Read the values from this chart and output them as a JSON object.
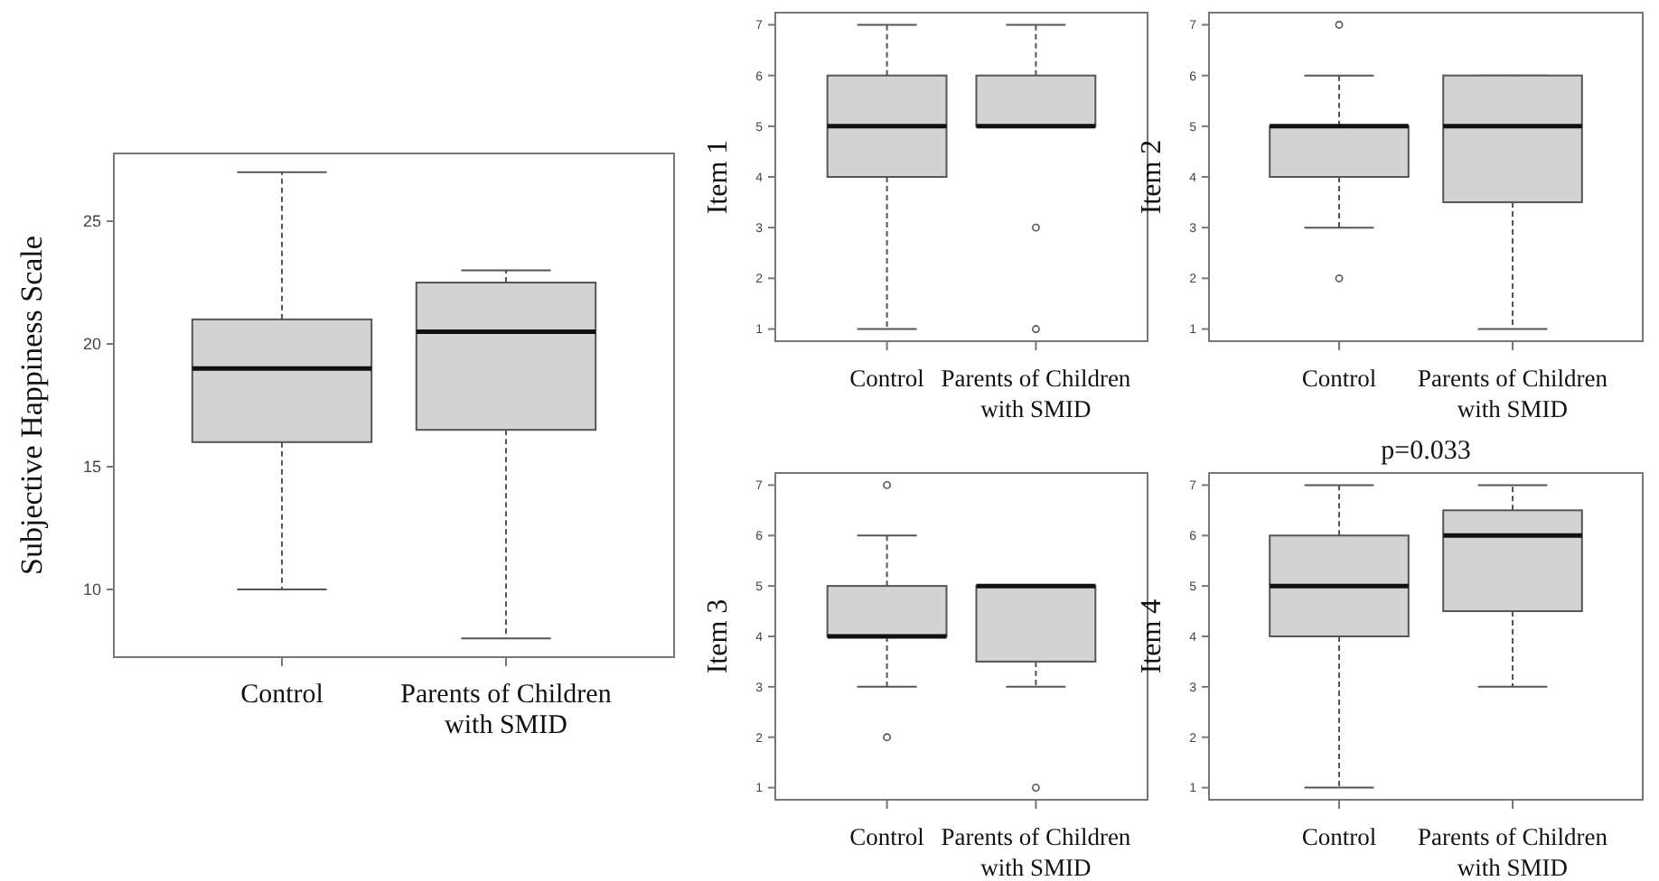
{
  "chart_data": [
    {
      "type": "box",
      "ylabel": "Subjective Happiness Scale",
      "categories": [
        "Control",
        "Parents of Children\nwith SMID"
      ],
      "ylim": [
        7.24,
        27.76
      ],
      "yticks": [
        10,
        15,
        20,
        25
      ],
      "grid": false,
      "color": "#d3d3d3",
      "boxes": [
        {
          "low": 10,
          "q1": 16,
          "median": 19,
          "q3": 21,
          "high": 27
        },
        {
          "low": 8,
          "q1": 16.5,
          "median": 20.5,
          "q3": 22.5,
          "high": 23
        }
      ]
    },
    {
      "type": "box",
      "ylabel": "Item 1",
      "categories": [
        "Control",
        "Parents of Children\nwith SMID"
      ],
      "ylim": [
        0.76,
        7.24
      ],
      "yticks": [
        1,
        2,
        3,
        4,
        5,
        6,
        7
      ],
      "grid": false,
      "color": "#d3d3d3",
      "boxes": [
        {
          "low": 1,
          "q1": 4,
          "median": 5,
          "q3": 6,
          "high": 7
        },
        {
          "low": 5,
          "q1": 5,
          "median": 5,
          "q3": 6,
          "high": 7,
          "outliers": [
            3,
            1
          ]
        }
      ]
    },
    {
      "type": "box",
      "ylabel": "Item 2",
      "categories": [
        "Control",
        "Parents of Children\nwith SMID"
      ],
      "ylim": [
        0.76,
        7.24
      ],
      "yticks": [
        1,
        2,
        3,
        4,
        5,
        6,
        7
      ],
      "grid": false,
      "color": "#d3d3d3",
      "boxes": [
        {
          "low": 3,
          "q1": 4,
          "median": 5,
          "q3": 5,
          "high": 6,
          "outliers": [
            7,
            2
          ]
        },
        {
          "low": 1,
          "q1": 3.5,
          "median": 5,
          "q3": 6,
          "high": 6
        }
      ]
    },
    {
      "type": "box",
      "ylabel": "Item 3",
      "categories": [
        "Control",
        "Parents of Children\nwith SMID"
      ],
      "ylim": [
        0.76,
        7.24
      ],
      "yticks": [
        1,
        2,
        3,
        4,
        5,
        6,
        7
      ],
      "grid": false,
      "color": "#d3d3d3",
      "boxes": [
        {
          "low": 3,
          "q1": 4,
          "median": 4,
          "q3": 5,
          "high": 6,
          "outliers": [
            7,
            2
          ]
        },
        {
          "low": 3,
          "q1": 3.5,
          "median": 5,
          "q3": 5,
          "high": 5,
          "outliers": [
            1
          ]
        }
      ]
    },
    {
      "type": "box",
      "title": "p=0.033",
      "ylabel": "Item 4",
      "categories": [
        "Control",
        "Parents of Children\nwith SMID"
      ],
      "ylim": [
        0.76,
        7.24
      ],
      "yticks": [
        1,
        2,
        3,
        4,
        5,
        6,
        7
      ],
      "grid": false,
      "color": "#d3d3d3",
      "boxes": [
        {
          "low": 1,
          "q1": 4,
          "median": 5,
          "q3": 6,
          "high": 7
        },
        {
          "low": 3,
          "q1": 4.5,
          "median": 6,
          "q3": 6.5,
          "high": 7
        }
      ]
    }
  ]
}
